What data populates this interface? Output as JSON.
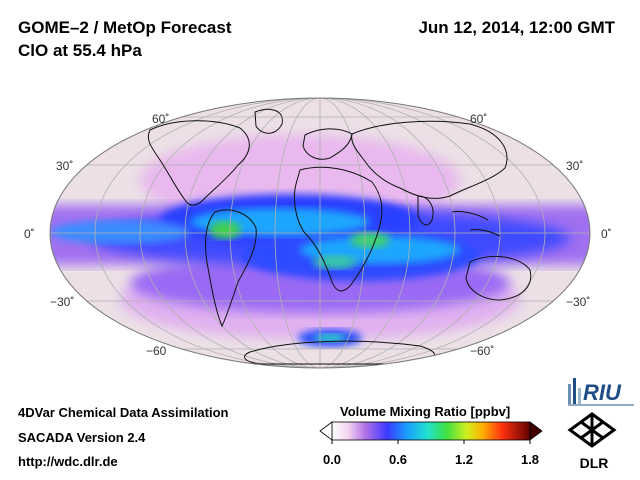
{
  "header": {
    "title": "GOME–2 / MetOp Forecast",
    "subtitle": "ClO at 55.4 hPa",
    "datetime": "Jun 12, 2014, 12:00 GMT"
  },
  "map": {
    "projection": "Mollweide (global)",
    "latitude_labels_left": [
      "60˚",
      "30˚",
      "0˚",
      "−30˚",
      "−60"
    ],
    "latitude_labels_right": [
      "60˚",
      "30˚",
      "0˚",
      "−30˚",
      "−60˚"
    ]
  },
  "colorbar": {
    "title": "Volume Mixing Ratio [ppbv]",
    "ticks": [
      "0.0",
      "0.6",
      "1.2",
      "1.8"
    ],
    "min": 0.0,
    "max": 1.8
  },
  "footer": {
    "line1": "4DVar Chemical Data Assimilation",
    "line2": "SACADA Version 2.4",
    "url": "http://wdc.dlr.de"
  },
  "logos": {
    "riu": "RIU",
    "dlr": "DLR"
  }
}
